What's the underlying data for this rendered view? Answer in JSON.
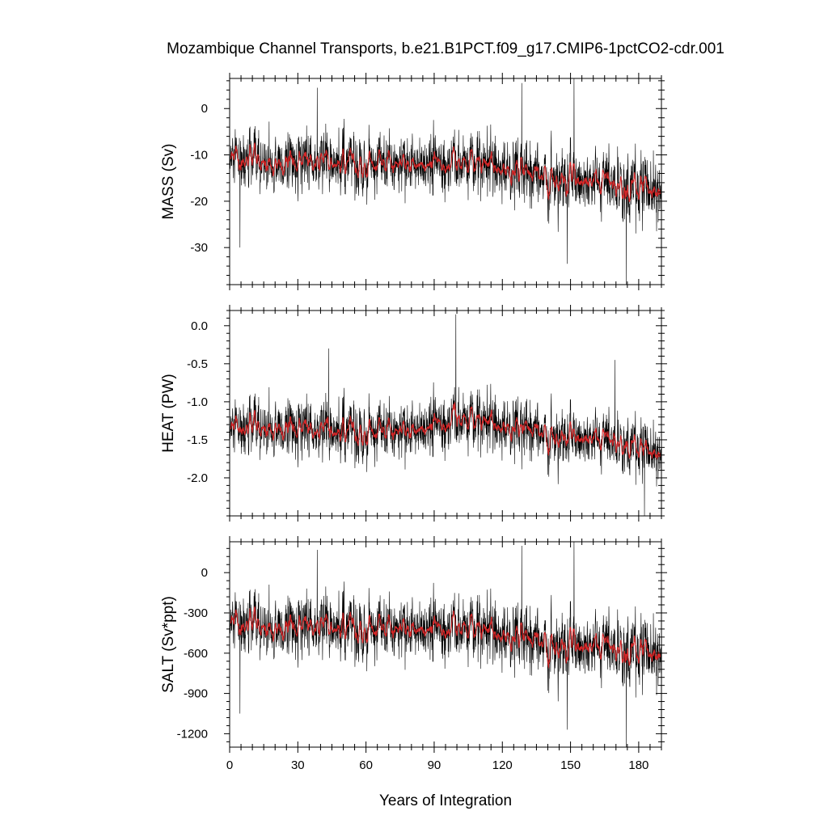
{
  "figure": {
    "title": "Mozambique Channel Transports, b.e21.B1PCT.f09_g17.CMIP6-1pctCO2-cdr.001",
    "xlabel": "Years of Integration"
  },
  "colors": {
    "raw_series": "#000000",
    "smoothed_series": "#d62728",
    "frame": "#000000",
    "background": "#ffffff"
  },
  "chart_data": [
    {
      "type": "line",
      "panel": "top",
      "ylabel": "MASS (Sv)",
      "xlim": [
        0,
        190
      ],
      "ylim": [
        -38,
        6.5
      ],
      "xticks": [
        0,
        30,
        60,
        90,
        120,
        150,
        180
      ],
      "xtick_labels": [
        "0",
        "30",
        "60",
        "90",
        "120",
        "150",
        "180"
      ],
      "yticks": [
        0,
        -10,
        -20,
        -30
      ],
      "ytick_labels": [
        "0",
        "-10",
        "-20",
        "-30"
      ],
      "legend": "none",
      "grid": false,
      "series_style": [
        "thin black line (monthly values)",
        "red line (running mean)"
      ],
      "trend_keypoints": {
        "x": [
          0,
          20,
          40,
          60,
          80,
          100,
          120,
          130,
          140,
          160,
          175,
          190
        ],
        "mean": [
          -11.5,
          -12.0,
          -11.5,
          -12.0,
          -12.0,
          -12.0,
          -12.5,
          -13.0,
          -15.0,
          -16.0,
          -17.5,
          -17.0
        ],
        "spread": [
          5.0,
          5.0,
          5.0,
          5.0,
          5.0,
          5.0,
          5.5,
          6.0,
          5.5,
          5.5,
          6.0,
          6.0
        ]
      },
      "extremes": [
        {
          "x": 38.5,
          "y": 4.5
        },
        {
          "x": 128.5,
          "y": 5.5
        },
        {
          "x": 151.5,
          "y": 6.5
        },
        {
          "x": 148.5,
          "y": -33.5
        },
        {
          "x": 174.5,
          "y": -38.0
        },
        {
          "x": 4.5,
          "y": -30.0
        }
      ]
    },
    {
      "type": "line",
      "panel": "middle",
      "ylabel": "HEAT (PW)",
      "xlim": [
        0,
        190
      ],
      "ylim": [
        -2.5,
        0.2
      ],
      "xticks": [
        0,
        30,
        60,
        90,
        120,
        150,
        180
      ],
      "xtick_labels": [
        "0",
        "30",
        "60",
        "90",
        "120",
        "150",
        "180"
      ],
      "yticks": [
        0.0,
        -0.5,
        -1.0,
        -1.5,
        -2.0
      ],
      "ytick_labels": [
        "0.0",
        "-0.5",
        "-1.0",
        "-1.5",
        "-2.0"
      ],
      "legend": "none",
      "grid": false,
      "series_style": [
        "thin black line (monthly values)",
        "red line (running mean)"
      ],
      "trend_keypoints": {
        "x": [
          0,
          20,
          40,
          60,
          80,
          100,
          120,
          130,
          140,
          160,
          175,
          190
        ],
        "mean": [
          -1.4,
          -1.35,
          -1.38,
          -1.4,
          -1.38,
          -1.25,
          -1.3,
          -1.3,
          -1.45,
          -1.5,
          -1.6,
          -1.65
        ],
        "spread": [
          0.3,
          0.3,
          0.3,
          0.3,
          0.3,
          0.3,
          0.32,
          0.33,
          0.3,
          0.3,
          0.3,
          0.3
        ]
      },
      "extremes": [
        {
          "x": 99.5,
          "y": 0.15
        },
        {
          "x": 43.5,
          "y": -0.3
        },
        {
          "x": 182.5,
          "y": -2.5
        },
        {
          "x": 169.5,
          "y": -0.45
        }
      ]
    },
    {
      "type": "line",
      "panel": "bottom",
      "ylabel": "SALT (Sv*ppt)",
      "xlim": [
        0,
        190
      ],
      "ylim": [
        -1300,
        230
      ],
      "xticks": [
        0,
        30,
        60,
        90,
        120,
        150,
        180
      ],
      "xtick_labels": [
        "0",
        "30",
        "60",
        "90",
        "120",
        "150",
        "180"
      ],
      "yticks": [
        0,
        -300,
        -600,
        -900,
        -1200
      ],
      "ytick_labels": [
        "0",
        "-300",
        "-600",
        "-900",
        "-1200"
      ],
      "legend": "none",
      "grid": false,
      "series_style": [
        "thin black line (monthly values)",
        "red line (running mean)"
      ],
      "trend_keypoints": {
        "x": [
          0,
          20,
          40,
          60,
          80,
          100,
          120,
          130,
          140,
          160,
          175,
          190
        ],
        "mean": [
          -400,
          -420,
          -400,
          -420,
          -420,
          -420,
          -450,
          -460,
          -540,
          -560,
          -600,
          -580
        ],
        "spread": [
          180,
          180,
          180,
          180,
          180,
          180,
          200,
          210,
          200,
          200,
          210,
          210
        ]
      },
      "extremes": [
        {
          "x": 38.5,
          "y": 170
        },
        {
          "x": 128.5,
          "y": 200
        },
        {
          "x": 151.5,
          "y": 230
        },
        {
          "x": 148.5,
          "y": -1170
        },
        {
          "x": 174.5,
          "y": -1300
        },
        {
          "x": 4.5,
          "y": -1050
        }
      ]
    }
  ]
}
